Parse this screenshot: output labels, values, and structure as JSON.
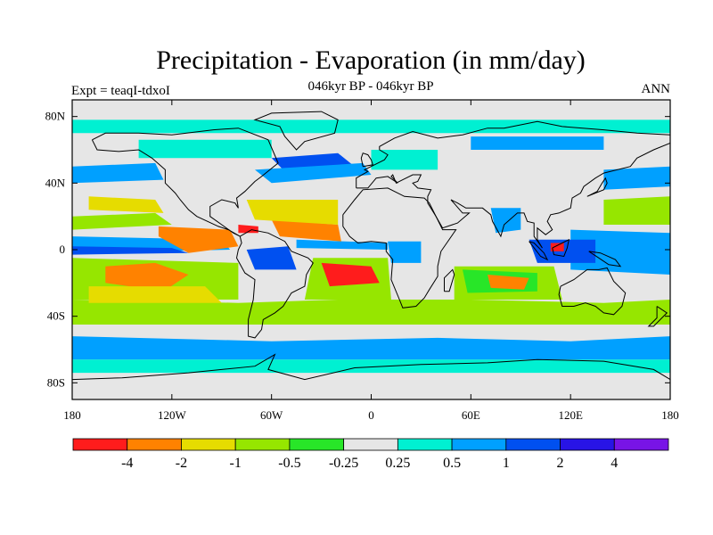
{
  "figure": {
    "title": "Precipitation - Evaporation (in mm/day)",
    "subtitle": "046kyr BP - 046kyr BP",
    "left_label": "Expt = teaqI-tdxoI",
    "right_label": "ANN"
  },
  "chart_data": {
    "type": "heatmap",
    "projection": "cylindrical-equidistant",
    "lon_range": [
      -180,
      180
    ],
    "lat_range": [
      -90,
      90
    ],
    "x_ticks": [
      {
        "value": -180,
        "label": "180"
      },
      {
        "value": -120,
        "label": "120W"
      },
      {
        "value": -60,
        "label": "60W"
      },
      {
        "value": 0,
        "label": "0"
      },
      {
        "value": 60,
        "label": "60E"
      },
      {
        "value": 120,
        "label": "120E"
      },
      {
        "value": 180,
        "label": "180"
      }
    ],
    "y_ticks": [
      {
        "value": 80,
        "label": "80N"
      },
      {
        "value": 40,
        "label": "40N"
      },
      {
        "value": 0,
        "label": "0"
      },
      {
        "value": -40,
        "label": "40S"
      },
      {
        "value": -80,
        "label": "80S"
      }
    ],
    "colorbar": {
      "colors": [
        "#ff1c1c",
        "#ff8200",
        "#e6dc00",
        "#96e600",
        "#28e628",
        "#e6e6e6",
        "#00f0d2",
        "#00a0ff",
        "#0050f0",
        "#2814e6",
        "#7814e6"
      ],
      "labels": [
        "-4",
        "-2",
        "-1",
        "-0.5",
        "-0.25",
        "0.25",
        "0.5",
        "1",
        "2",
        "4"
      ]
    },
    "colors": {
      "land": "#e6e6e6",
      "frame": "#000000"
    }
  }
}
